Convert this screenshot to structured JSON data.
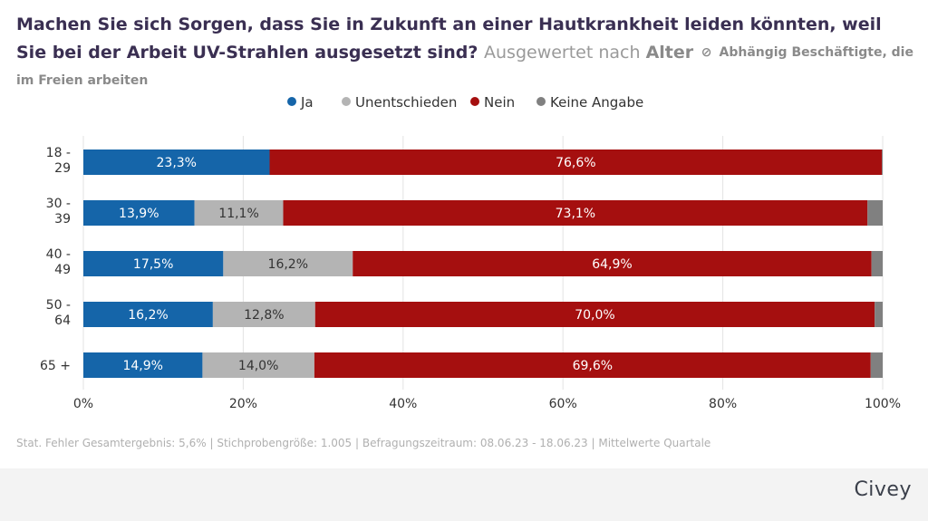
{
  "title": {
    "question": "Machen Sie sich Sorgen, dass Sie in Zukunft an einer Hautkrankheit leiden könnten, weil Sie bei der Arbeit UV-Strahlen ausgesetzt sind?",
    "evaluated_prefix": "Ausgewertet nach",
    "evaluated_by": "Alter",
    "filter_icon": "ban-icon",
    "filter_label": "Abhängig Beschäftigte, die im Freien arbeiten"
  },
  "colors": {
    "ja": "#1565a9",
    "unentschieden": "#b4b4b4",
    "nein": "#a50f0f",
    "keine_angabe": "#808080"
  },
  "chart_data": {
    "type": "bar",
    "orientation": "horizontal",
    "stacked": true,
    "categories": [
      "18 - 29",
      "30 - 39",
      "40 - 49",
      "50 - 64",
      "65 +"
    ],
    "series": [
      {
        "name": "Ja",
        "values": [
          23.3,
          13.9,
          17.5,
          16.2,
          14.9
        ],
        "labels": [
          "23,3%",
          "13,9%",
          "17,5%",
          "16,2%",
          "14,9%"
        ]
      },
      {
        "name": "Unentschieden",
        "values": [
          0.0,
          11.1,
          16.2,
          12.8,
          14.0
        ],
        "labels": [
          "",
          "11,1%",
          "16,2%",
          "12,8%",
          "14,0%"
        ]
      },
      {
        "name": "Nein",
        "values": [
          76.6,
          73.1,
          64.9,
          70.0,
          69.6
        ],
        "labels": [
          "76,6%",
          "73,1%",
          "64,9%",
          "70,0%",
          "69,6%"
        ]
      },
      {
        "name": "Keine Angabe",
        "values": [
          0.1,
          1.9,
          1.4,
          1.0,
          1.5
        ],
        "labels": [
          "",
          "",
          "",
          "",
          ""
        ]
      }
    ],
    "xlim": [
      0,
      100
    ],
    "xticks": [
      "0%",
      "20%",
      "40%",
      "60%",
      "80%",
      "100%"
    ],
    "grid": true,
    "legend_position": "top"
  },
  "footer": {
    "note": "Stat. Fehler Gesamtergebnis: 5,6% | Stichprobengröße: 1.005 | Befragungszeitraum: 08.06.23 - 18.06.23 | Mittelwerte Quartale",
    "brand": "Civey"
  }
}
